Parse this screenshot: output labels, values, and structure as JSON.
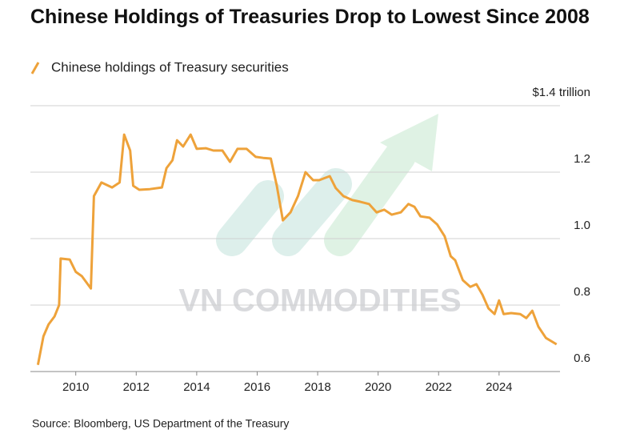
{
  "chart_data": {
    "type": "line",
    "title": "Chinese Holdings of Treasuries Drop to Lowest Since 2008",
    "source": "Source: Bloomberg, US Department of the Treasury",
    "watermark": "VN COMMODITIES",
    "x": [
      2008.75,
      2008.93,
      2009.1,
      2009.3,
      2009.45,
      2009.5,
      2009.8,
      2010.0,
      2010.2,
      2010.5,
      2010.6,
      2010.85,
      2011.2,
      2011.45,
      2011.6,
      2011.8,
      2011.9,
      2012.1,
      2012.45,
      2012.85,
      2013.0,
      2013.2,
      2013.35,
      2013.55,
      2013.8,
      2014.0,
      2014.3,
      2014.55,
      2014.85,
      2015.1,
      2015.35,
      2015.65,
      2015.95,
      2016.2,
      2016.45,
      2016.65,
      2016.85,
      2017.1,
      2017.35,
      2017.6,
      2017.85,
      2018.05,
      2018.25,
      2018.4,
      2018.6,
      2018.85,
      2019.15,
      2019.4,
      2019.7,
      2019.95,
      2020.2,
      2020.45,
      2020.75,
      2021.0,
      2021.2,
      2021.4,
      2021.7,
      2021.95,
      2022.2,
      2022.4,
      2022.55,
      2022.8,
      2023.05,
      2023.25,
      2023.45,
      2023.65,
      2023.85,
      2024.0,
      2024.15,
      2024.4,
      2024.7,
      2024.9,
      2025.1,
      2025.3,
      2025.55,
      2025.9
    ],
    "series": [
      {
        "name": "Chinese holdings of Treasury securities",
        "color": "#eea23a",
        "values": [
          0.62,
          0.706,
          0.742,
          0.766,
          0.8,
          0.94,
          0.937,
          0.9,
          0.887,
          0.85,
          1.128,
          1.169,
          1.154,
          1.169,
          1.313,
          1.265,
          1.159,
          1.147,
          1.149,
          1.154,
          1.212,
          1.236,
          1.296,
          1.277,
          1.313,
          1.27,
          1.272,
          1.265,
          1.265,
          1.231,
          1.27,
          1.27,
          1.246,
          1.243,
          1.241,
          1.159,
          1.055,
          1.079,
          1.128,
          1.2,
          1.176,
          1.176,
          1.183,
          1.188,
          1.152,
          1.128,
          1.116,
          1.111,
          1.104,
          1.079,
          1.087,
          1.072,
          1.079,
          1.104,
          1.096,
          1.067,
          1.063,
          1.043,
          1.007,
          0.947,
          0.935,
          0.875,
          0.855,
          0.863,
          0.831,
          0.79,
          0.773,
          0.814,
          0.773,
          0.776,
          0.773,
          0.761,
          0.783,
          0.735,
          0.701,
          0.682
        ]
      }
    ],
    "xlim": [
      2008.5,
      2026.2
    ],
    "xticks": [
      2010,
      2012,
      2014,
      2016,
      2018,
      2020,
      2022,
      2024
    ],
    "ylim": [
      0.6,
      1.4
    ],
    "yticks": [
      0.6,
      0.8,
      {
        "value": 1,
        "label": "1.0"
      },
      1.2,
      {
        "value": 1.4,
        "label": "$1.4 trillion"
      }
    ],
    "grid": true
  }
}
